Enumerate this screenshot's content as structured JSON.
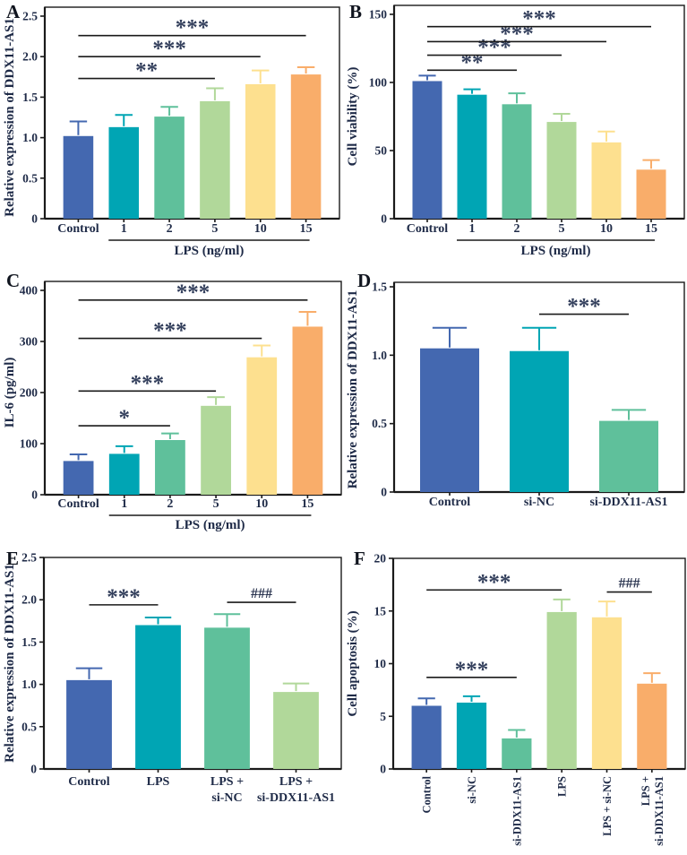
{
  "figure": {
    "panel_letters": [
      "A",
      "B",
      "C",
      "D",
      "E",
      "F"
    ],
    "palette": {
      "blue": "#4468B0",
      "teal": "#00A5B4",
      "green": "#5FC09B",
      "light_green": "#B1D89A",
      "yellow": "#FDE08F",
      "orange": "#F9AD6A",
      "axis": "#1a1a1a",
      "label_text": "#1e2a47",
      "sig_text": "#333f5c"
    }
  },
  "chart_data": [
    {
      "panel": "A",
      "type": "bar",
      "ylabel": "Relative expression of DDX11-AS1",
      "xlabel": "LPS (ng/ml)",
      "ylim": [
        0,
        2.5
      ],
      "yticks": [
        0,
        0.5,
        1.0,
        1.5,
        2.0,
        2.5
      ],
      "ytick_labels": [
        "0",
        "0.5",
        "1.0",
        "1.5",
        "2.0",
        "2.5"
      ],
      "categories": [
        "Control",
        "1",
        "2",
        "5",
        "10",
        "15"
      ],
      "values": [
        1.02,
        1.13,
        1.26,
        1.45,
        1.66,
        1.78
      ],
      "errors": [
        0.18,
        0.15,
        0.12,
        0.16,
        0.17,
        0.09
      ],
      "bar_colors": [
        "#4468B0",
        "#00A5B4",
        "#5FC09B",
        "#B1D89A",
        "#FDE08F",
        "#F9AD6A"
      ],
      "group": {
        "text": "LPS (ng/ml)",
        "from": 1,
        "to": 5
      },
      "significance": [
        {
          "from": 0,
          "to": 3,
          "y": 1.73,
          "label": "**"
        },
        {
          "from": 0,
          "to": 4,
          "y": 2.0,
          "label": "***"
        },
        {
          "from": 0,
          "to": 5,
          "y": 2.26,
          "label": "***"
        }
      ]
    },
    {
      "panel": "B",
      "type": "bar",
      "ylabel": "Cell viability (%)",
      "xlabel": "LPS (ng/ml)",
      "ylim": [
        0,
        150
      ],
      "yticks": [
        0,
        50,
        100,
        150
      ],
      "ytick_labels": [
        "0",
        "50",
        "100",
        "150"
      ],
      "categories": [
        "Control",
        "1",
        "2",
        "5",
        "10",
        "15"
      ],
      "values": [
        101,
        91,
        84,
        71,
        56,
        36
      ],
      "errors": [
        4,
        4,
        8,
        6,
        8,
        7
      ],
      "bar_colors": [
        "#4468B0",
        "#00A5B4",
        "#5FC09B",
        "#B1D89A",
        "#FDE08F",
        "#F9AD6A"
      ],
      "group": {
        "text": "LPS (ng/ml)",
        "from": 1,
        "to": 5
      },
      "significance": [
        {
          "from": 0,
          "to": 2,
          "y": 109,
          "label": "**"
        },
        {
          "from": 0,
          "to": 3,
          "y": 120,
          "label": "***"
        },
        {
          "from": 0,
          "to": 4,
          "y": 130,
          "label": "***"
        },
        {
          "from": 0,
          "to": 5,
          "y": 141,
          "label": "***"
        }
      ]
    },
    {
      "panel": "C",
      "type": "bar",
      "ylabel": "IL-6 (pg/ml)",
      "xlabel": "LPS (ng/ml)",
      "ylim": [
        0,
        400
      ],
      "yticks": [
        0,
        100,
        200,
        300,
        400
      ],
      "ytick_labels": [
        "0",
        "100",
        "200",
        "300",
        "400"
      ],
      "categories": [
        "Control",
        "1",
        "2",
        "5",
        "10",
        "15"
      ],
      "values": [
        66,
        80,
        107,
        174,
        269,
        329
      ],
      "errors": [
        13,
        15,
        13,
        17,
        23,
        29
      ],
      "bar_colors": [
        "#4468B0",
        "#00A5B4",
        "#5FC09B",
        "#B1D89A",
        "#FDE08F",
        "#F9AD6A"
      ],
      "group": {
        "text": "LPS (ng/ml)",
        "from": 1,
        "to": 5
      },
      "significance": [
        {
          "from": 0,
          "to": 2,
          "y": 135,
          "label": "*"
        },
        {
          "from": 0,
          "to": 3,
          "y": 203,
          "label": "***"
        },
        {
          "from": 0,
          "to": 4,
          "y": 306,
          "label": "***"
        },
        {
          "from": 0,
          "to": 5,
          "y": 381,
          "label": "***"
        }
      ]
    },
    {
      "panel": "D",
      "type": "bar",
      "ylabel": "Relative expression of DDX11-AS1",
      "xlabel": "",
      "ylim": [
        0,
        1.5
      ],
      "yticks": [
        0,
        0.5,
        1.0,
        1.5
      ],
      "ytick_labels": [
        "0",
        "0.5",
        "1.0",
        "1.5"
      ],
      "categories": [
        "Control",
        "si-NC",
        "si-DDX11-AS1"
      ],
      "values": [
        1.05,
        1.03,
        0.52
      ],
      "errors": [
        0.15,
        0.17,
        0.08
      ],
      "bar_colors": [
        "#4468B0",
        "#00A5B4",
        "#5FC09B"
      ],
      "significance": [
        {
          "from": 1,
          "to": 2,
          "y": 1.3,
          "label": "***"
        }
      ]
    },
    {
      "panel": "E",
      "type": "bar",
      "ylabel": "Relative expression of DDX11-AS1",
      "xlabel": "",
      "ylim": [
        0,
        2.5
      ],
      "yticks": [
        0,
        0.5,
        1.0,
        1.5,
        2.0,
        2.5
      ],
      "ytick_labels": [
        "0",
        "0.5",
        "1.0",
        "1.5",
        "2.0",
        "2.5"
      ],
      "categories": [
        "Control",
        "LPS",
        [
          "LPS +",
          "si-NC"
        ],
        [
          "LPS +",
          "si-DDX11-AS1"
        ]
      ],
      "values": [
        1.05,
        1.7,
        1.67,
        0.91
      ],
      "errors": [
        0.14,
        0.09,
        0.16,
        0.1
      ],
      "bar_colors": [
        "#4468B0",
        "#00A5B4",
        "#5FC09B",
        "#B1D89A"
      ],
      "significance": [
        {
          "from": 0,
          "to": 1,
          "y": 1.94,
          "label": "***"
        },
        {
          "from": 2,
          "to": 3,
          "y": 1.97,
          "label": "###"
        }
      ]
    },
    {
      "panel": "F",
      "type": "bar",
      "ylabel": "Cell apoptosis (%)",
      "xlabel": "",
      "ylim": [
        0,
        20
      ],
      "yticks": [
        0,
        5,
        10,
        15,
        20
      ],
      "ytick_labels": [
        "0",
        "5",
        "10",
        "15",
        "20"
      ],
      "categories": [
        "Control",
        "si-NC",
        "si-DDX11-AS1",
        "LPS",
        "LPS + si-NC",
        [
          "LPS +",
          "si-DDX11-AS1"
        ]
      ],
      "values": [
        6.0,
        6.3,
        2.9,
        14.9,
        14.4,
        8.1
      ],
      "errors": [
        0.7,
        0.6,
        0.8,
        1.2,
        1.5,
        1.0
      ],
      "bar_colors": [
        "#4468B0",
        "#00A5B4",
        "#5FC09B",
        "#B1D89A",
        "#FDE08F",
        "#F9AD6A"
      ],
      "significance": [
        {
          "from": 0,
          "to": 2,
          "y": 8.7,
          "label": "***"
        },
        {
          "from": 0,
          "to": 3,
          "y": 17.0,
          "label": "***"
        },
        {
          "from": 4,
          "to": 5,
          "y": 16.8,
          "label": "###"
        }
      ]
    }
  ]
}
